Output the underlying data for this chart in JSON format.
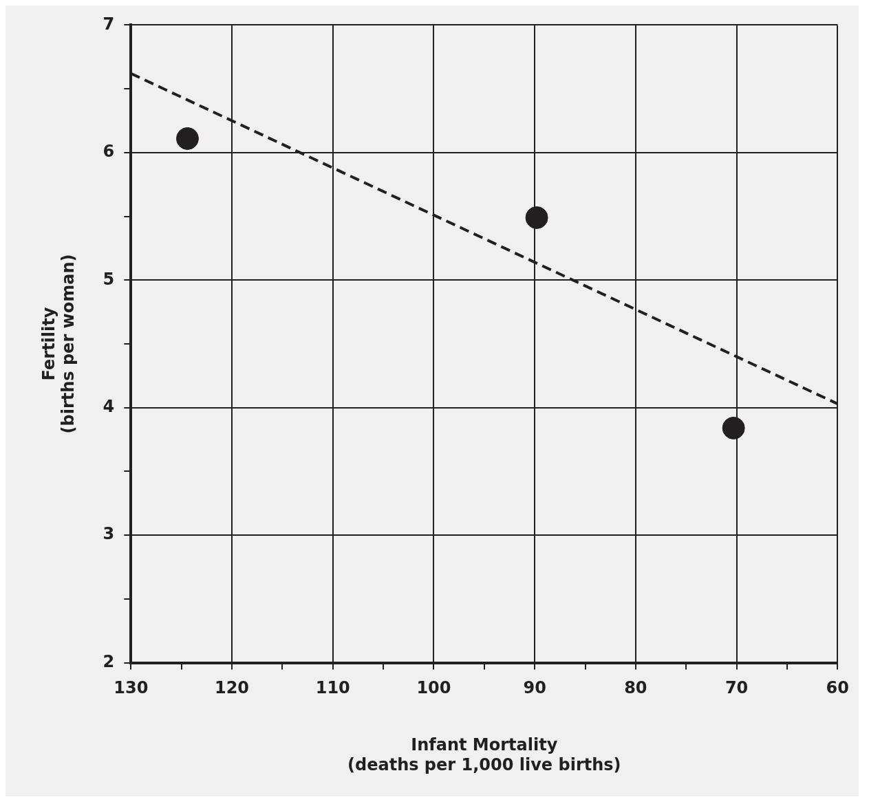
{
  "chart_data": {
    "type": "scatter",
    "xlabel": "Infant Mortality\n(deaths per 1,000 live births)",
    "ylabel": "Fertility\n(births per woman)",
    "series": [
      {
        "type": "scatter",
        "color": "#231f20",
        "x": [
          124.4,
          89.8,
          70.3
        ],
        "values": [
          6.11,
          5.49,
          3.84
        ],
        "marker": "circle"
      },
      {
        "type": "line",
        "color": "#231f20",
        "x": [
          130,
          60
        ],
        "values": [
          6.62,
          4.03
        ],
        "marker": "none",
        "line_style": "dashed"
      }
    ],
    "xlim": [
      130,
      60
    ],
    "xticks": [
      130,
      {
        "value": 125,
        "label": null
      },
      120,
      {
        "value": 115,
        "label": null
      },
      110,
      {
        "value": 105,
        "label": null
      },
      100,
      {
        "value": 95,
        "label": null
      },
      90,
      {
        "value": 85,
        "label": null
      },
      80,
      {
        "value": 75,
        "label": null
      },
      70,
      {
        "value": 65,
        "label": null
      },
      60
    ],
    "ylim": [
      2,
      7
    ],
    "yticks": [
      2,
      {
        "value": 2.5,
        "label": null
      },
      3,
      {
        "value": 3.5,
        "label": null
      },
      4,
      {
        "value": 4.5,
        "label": null
      },
      5,
      {
        "value": 5.5,
        "label": null
      },
      6,
      {
        "value": 6.5,
        "label": null
      },
      7
    ],
    "grid": true,
    "legend": false
  }
}
